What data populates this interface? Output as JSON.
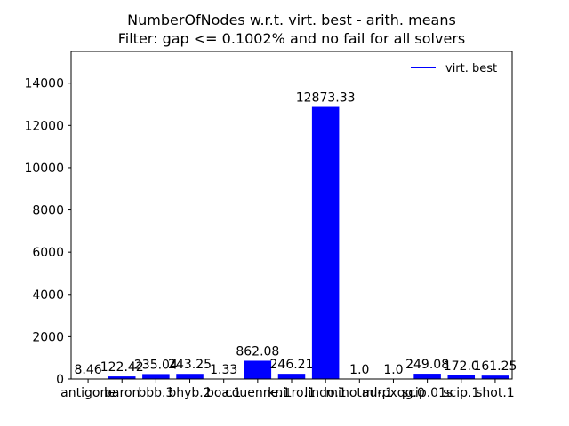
{
  "chart_data": {
    "type": "bar",
    "title_line1": "NumberOfNodes w.r.t. virt. best - arith. means",
    "title_line2": "Filter: gap <= 0.1002% and no fail for all solvers",
    "categories": [
      "antigone",
      "baron",
      "bbb.3",
      "bhyb.2",
      "boa.1",
      "couenne.1",
      "knitro.1",
      "lindo.1",
      "minotaur.1",
      "ml-pxqg.0",
      "scip.01s",
      "scip.1",
      "shot.1"
    ],
    "values": [
      8.46,
      122.42,
      235.04,
      243.25,
      1.33,
      862.08,
      246.21,
      12873.33,
      1.0,
      1.0,
      249.08,
      172.0,
      161.25
    ],
    "value_labels": [
      "8.46",
      "122.42",
      "235.04",
      "243.25",
      "1.33",
      "862.08",
      "246.21",
      "12873.33",
      "1.0",
      "1.0",
      "249.08",
      "172.0",
      "161.25"
    ],
    "ylim": [
      0,
      15500
    ],
    "yticks": [
      0,
      2000,
      4000,
      6000,
      8000,
      10000,
      12000,
      14000
    ],
    "legend": {
      "label": "virt. best",
      "placement": "top-right"
    },
    "bar_color": "#0000ff",
    "legend_line_color": "#0000ff",
    "grid": false
  }
}
